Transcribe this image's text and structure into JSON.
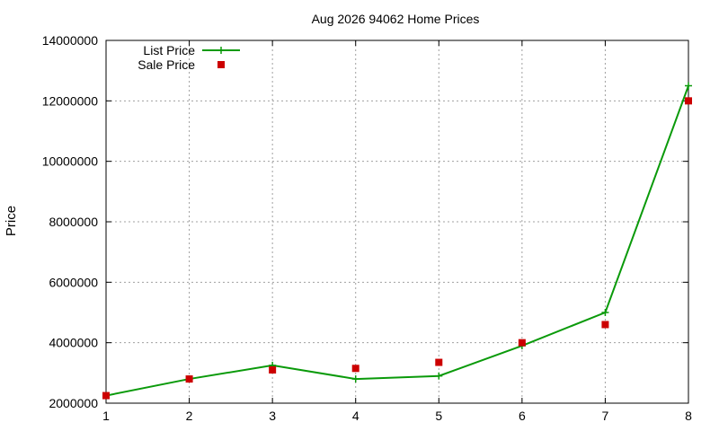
{
  "chart_data": {
    "type": "line",
    "title": "Aug 2026 94062 Home Prices",
    "xlabel": "",
    "ylabel": "Price",
    "x": [
      1,
      2,
      3,
      4,
      5,
      6,
      7,
      8
    ],
    "xlim": [
      1,
      8
    ],
    "ylim": [
      2000000,
      14000000
    ],
    "xticks": [
      "1",
      "2",
      "3",
      "4",
      "5",
      "6",
      "7",
      "8"
    ],
    "yticks": [
      "2000000",
      "4000000",
      "6000000",
      "8000000",
      "10000000",
      "12000000",
      "14000000"
    ],
    "grid": true,
    "legend_position": "top-left",
    "series": [
      {
        "name": "List Price",
        "style": "line-with-plus-markers",
        "color": "#0a9a0a",
        "values": [
          2250000,
          2800000,
          3250000,
          2800000,
          2900000,
          3900000,
          5000000,
          12500000
        ]
      },
      {
        "name": "Sale Price",
        "style": "square-markers",
        "color": "#cc0000",
        "values": [
          2250000,
          2800000,
          3100000,
          3150000,
          3350000,
          4000000,
          4600000,
          12000000
        ]
      }
    ]
  }
}
